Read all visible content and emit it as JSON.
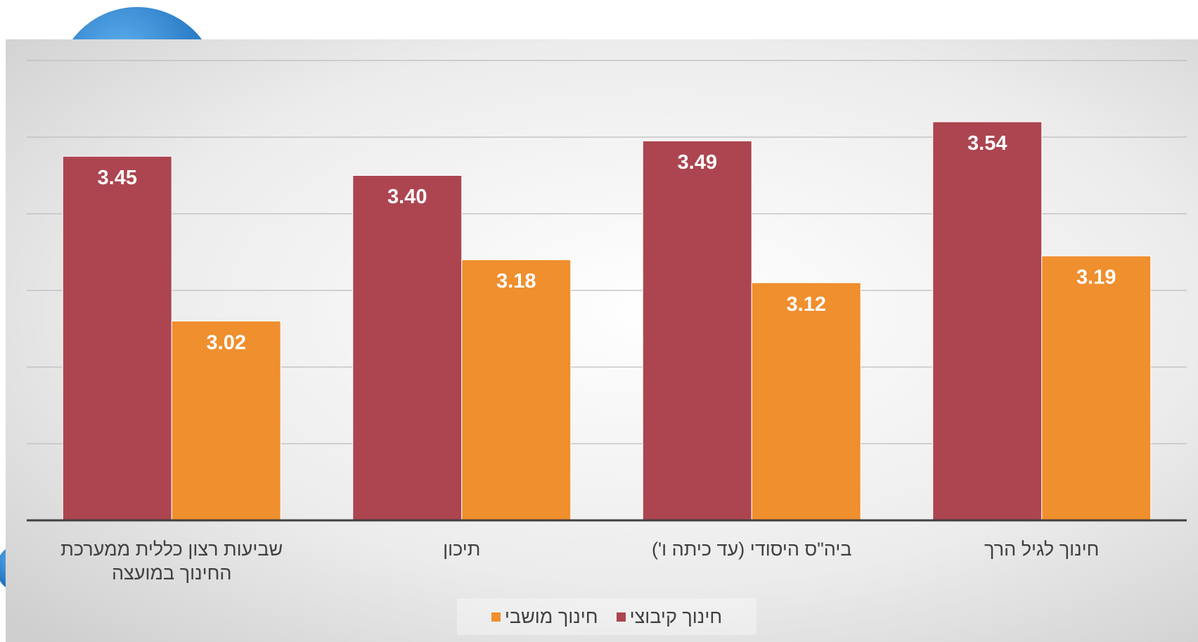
{
  "chart_data": {
    "type": "bar",
    "categories": [
      "שביעות רצון כללית ממערכת החינוך במועצה",
      "תיכון",
      "ביה\"ס היסודי (עד כיתה ו')",
      "חינוך לגיל הרך"
    ],
    "series": [
      {
        "name": "חינוך קיבוצי",
        "color": "#ac4550",
        "values": [
          3.45,
          3.4,
          3.49,
          3.54
        ],
        "value_labels": [
          "3.45",
          "3.40",
          "3.49",
          "3.54"
        ]
      },
      {
        "name": "חינוך מושבי",
        "color": "#ef8f2e",
        "values": [
          3.02,
          3.18,
          3.12,
          3.19
        ],
        "value_labels": [
          "3.02",
          "3.18",
          "3.12",
          "3.19"
        ]
      }
    ],
    "ylim": [
      2.5,
      3.7
    ],
    "yticks": [
      2.7,
      2.9,
      3.1,
      3.3,
      3.5,
      3.7
    ],
    "grid": true,
    "legend": "bottom"
  }
}
